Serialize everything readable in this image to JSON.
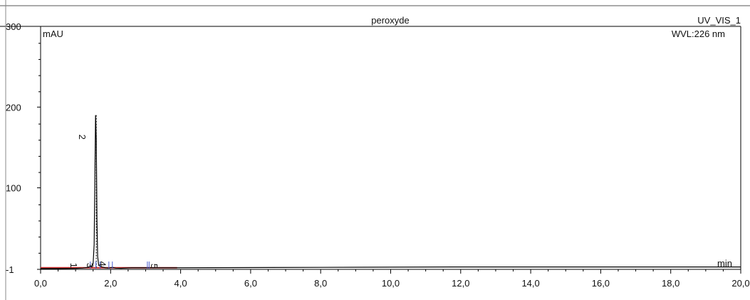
{
  "chart_data": {
    "type": "line",
    "title": "peroxyde",
    "channel": "UV_VIS_1",
    "wavelength": "WVL:226 nm",
    "ylabel": "mAU",
    "xlabel": "min",
    "xlim": [
      0,
      20
    ],
    "ylim": [
      -1,
      300
    ],
    "x_ticks": [
      "0,0",
      "2,0",
      "4,0",
      "6,0",
      "8,0",
      "10,0",
      "12,0",
      "14,0",
      "16,0",
      "18,0",
      "20,0"
    ],
    "y_ticks": [
      {
        "value": -1,
        "label": "-1"
      },
      {
        "value": 100,
        "label": "100"
      },
      {
        "value": 200,
        "label": "200"
      },
      {
        "value": 300,
        "label": "300"
      }
    ],
    "series": [
      {
        "color": "#000000",
        "x": [
          0.0,
          0.5,
          1.0,
          1.2,
          1.35,
          1.45,
          1.5,
          1.53,
          1.55,
          1.57,
          1.59,
          1.61,
          1.63,
          1.66,
          1.7,
          1.75,
          1.85,
          1.95,
          2.05,
          2.15,
          2.3,
          2.6,
          3.0,
          4.0,
          8.0,
          12.0,
          16.0,
          20.0
        ],
        "y": [
          0.0,
          0.0,
          0.2,
          0.6,
          1.5,
          3.0,
          6.0,
          30.0,
          110.0,
          190.0,
          160.0,
          60.0,
          15.0,
          4.0,
          3.0,
          2.0,
          1.0,
          0.5,
          1.5,
          0.5,
          0.3,
          1.0,
          1.0,
          1.0,
          1.5,
          2.0,
          2.0,
          2.0
        ]
      }
    ],
    "baseline": {
      "color": "#d03030",
      "x": [
        0.0,
        3.9
      ],
      "y": [
        1.0,
        1.0
      ]
    },
    "peaks": [
      {
        "label": "1",
        "x": 0.85,
        "y": 4
      },
      {
        "label": "2",
        "x": 1.1,
        "y": 163
      },
      {
        "label": "3",
        "x": 1.32,
        "y": 4
      },
      {
        "label": "4",
        "x": 1.68,
        "y": 6
      },
      {
        "label": "5",
        "x": 3.15,
        "y": 3
      }
    ],
    "markers_x": [
      1.42,
      1.58,
      1.7,
      1.95,
      2.05,
      3.05,
      3.1
    ],
    "marker_color": "#4a5fd0"
  }
}
